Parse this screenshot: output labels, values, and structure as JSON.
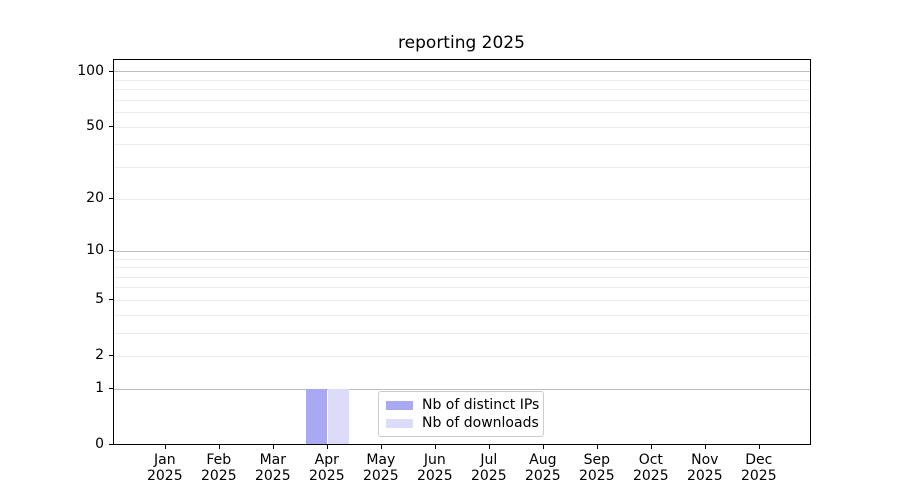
{
  "chart_data": {
    "type": "bar",
    "title": "reporting 2025",
    "x": {
      "categories": [
        "Jan",
        "Feb",
        "Mar",
        "Apr",
        "May",
        "Jun",
        "Jul",
        "Aug",
        "Sep",
        "Oct",
        "Nov",
        "Dec"
      ],
      "year_label": "2025"
    },
    "y": {
      "scale": "log1p",
      "tick_values": [
        0,
        1,
        2,
        5,
        10,
        20,
        50,
        100
      ],
      "ylim": [
        0,
        115
      ],
      "major_gridlines": [
        1,
        10,
        100
      ],
      "minor_gridlines": [
        2,
        3,
        4,
        5,
        6,
        7,
        8,
        9,
        20,
        30,
        40,
        50,
        60,
        70,
        80,
        90
      ]
    },
    "series": [
      {
        "name": "Nb of distinct IPs",
        "color": "#a9a9f3",
        "values": [
          0,
          0,
          0,
          1,
          0,
          0,
          0,
          0,
          0,
          0,
          0,
          0
        ]
      },
      {
        "name": "Nb of downloads",
        "color": "#dcdcf9",
        "values": [
          0,
          0,
          0,
          1,
          0,
          0,
          0,
          0,
          0,
          0,
          0,
          0
        ]
      }
    ],
    "legend": {
      "position": "lower center",
      "entries": [
        "Nb of distinct IPs",
        "Nb of downloads"
      ]
    },
    "grid": {
      "major_color": "#bdbdbd",
      "minor_color": "#ebebeb"
    }
  }
}
